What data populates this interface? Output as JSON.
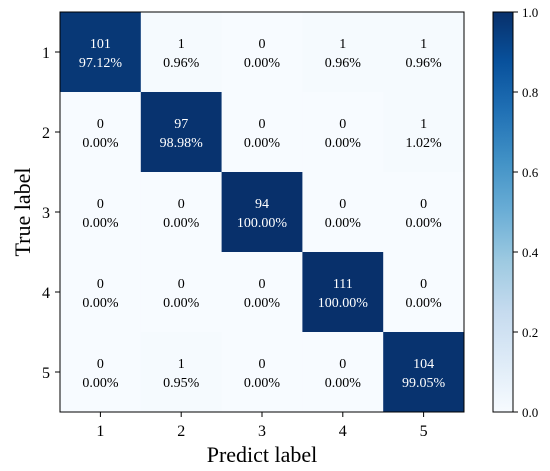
{
  "chart_data": {
    "type": "heatmap",
    "title": "",
    "xlabel": "Predict label",
    "ylabel": "True label",
    "x_categories": [
      "1",
      "2",
      "3",
      "4",
      "5"
    ],
    "y_categories": [
      "1",
      "2",
      "3",
      "4",
      "5"
    ],
    "counts": [
      [
        101,
        1,
        0,
        1,
        1
      ],
      [
        0,
        97,
        0,
        0,
        1
      ],
      [
        0,
        0,
        94,
        0,
        0
      ],
      [
        0,
        0,
        0,
        111,
        0
      ],
      [
        0,
        1,
        0,
        0,
        104
      ]
    ],
    "percent_labels": [
      [
        "97.12%",
        "0.96%",
        "0.00%",
        "0.96%",
        "0.96%"
      ],
      [
        "0.00%",
        "98.98%",
        "0.00%",
        "0.00%",
        "1.02%"
      ],
      [
        "0.00%",
        "0.00%",
        "100.00%",
        "0.00%",
        "0.00%"
      ],
      [
        "0.00%",
        "0.00%",
        "0.00%",
        "100.00%",
        "0.00%"
      ],
      [
        "0.00%",
        "0.95%",
        "0.00%",
        "0.00%",
        "99.05%"
      ]
    ],
    "colorbar": {
      "range": [
        0.0,
        1.0
      ],
      "ticks": [
        "0.0",
        "0.2",
        "0.4",
        "0.6",
        "0.8",
        "1.0"
      ],
      "colormap": "Blues",
      "low_color": "#f7fbff",
      "high_color": "#08306b"
    },
    "grid": false
  }
}
